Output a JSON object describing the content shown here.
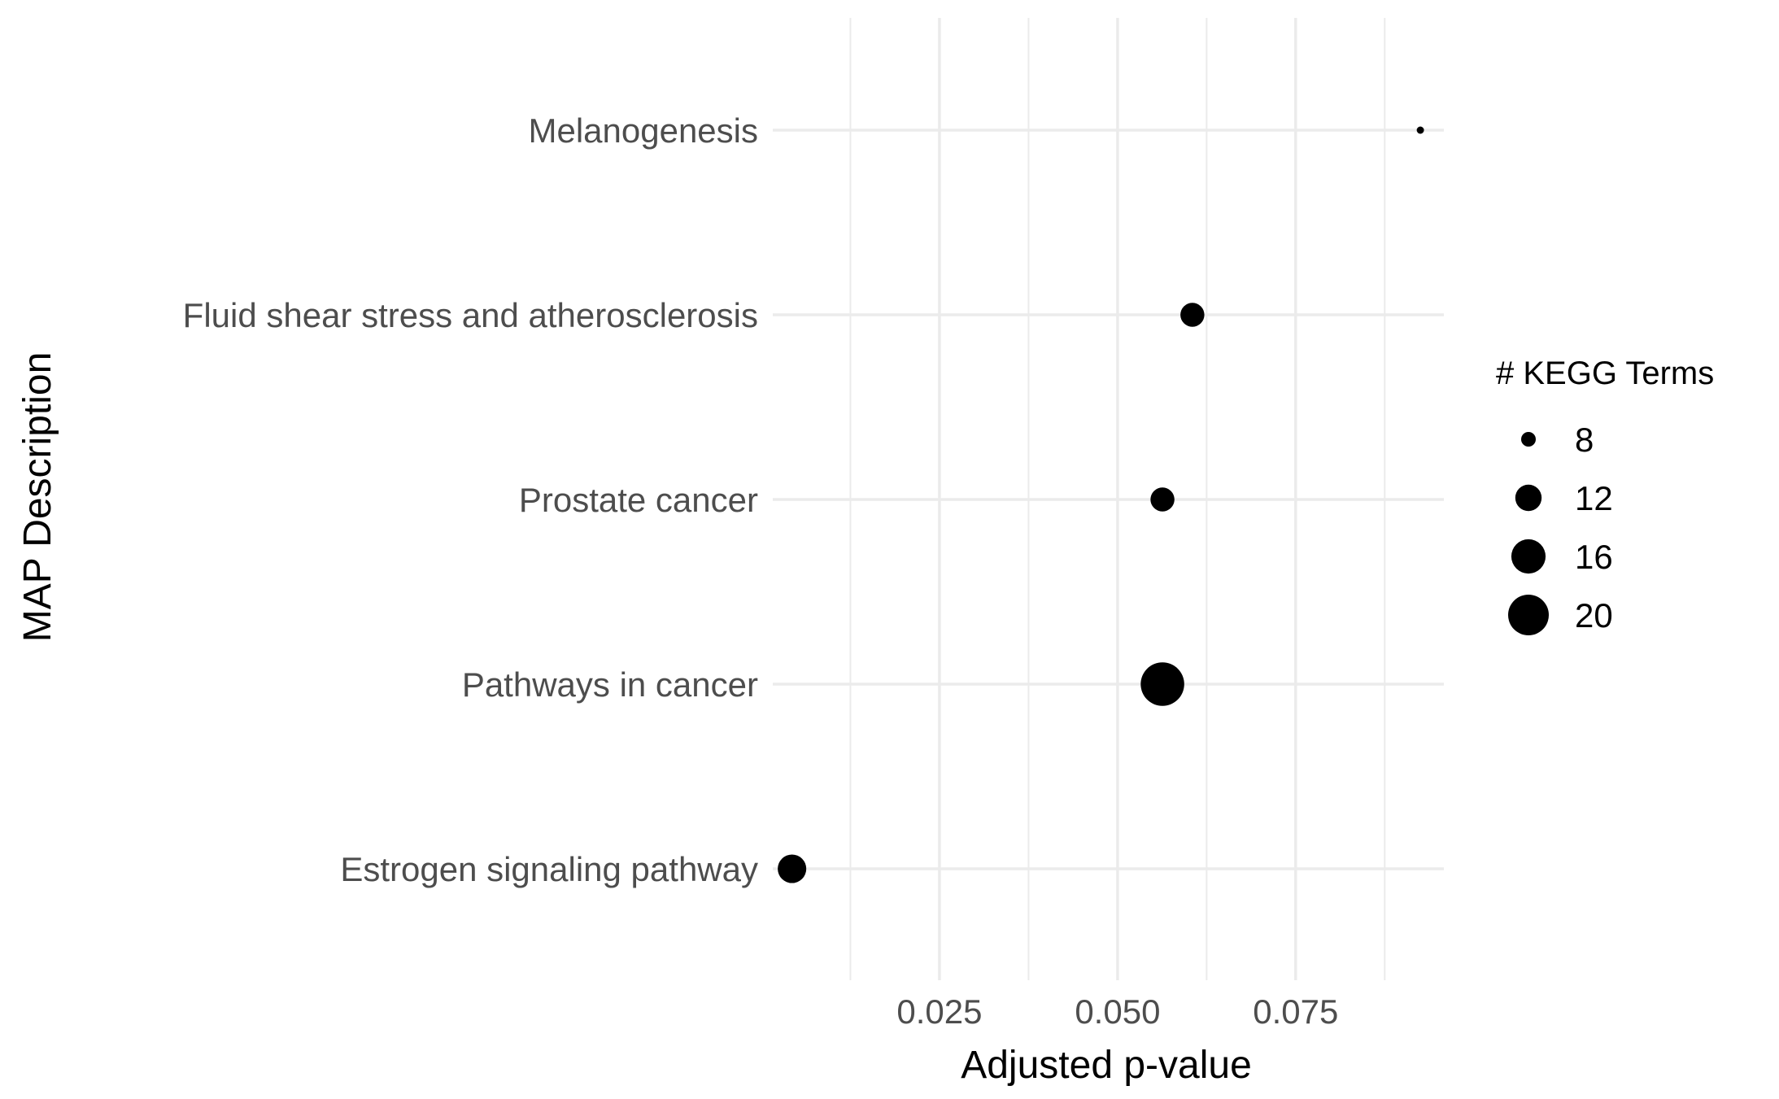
{
  "chart_data": {
    "type": "scatter",
    "title": "",
    "xlabel": "Adjusted p-value",
    "ylabel": "MAP Description",
    "xlim": [
      0.0016,
      0.0958
    ],
    "x_ticks": [
      0.025,
      0.05,
      0.075
    ],
    "x_tick_labels": [
      "0.025",
      "0.050",
      "0.075"
    ],
    "x_minor_gridlines": [
      0.0125,
      0.0375,
      0.0625,
      0.0875
    ],
    "categories": [
      "Estrogen signaling pathway",
      "Pathways in cancer",
      "Prostate cancer",
      "Fluid shear stress and atherosclerosis",
      "Melanogenesis"
    ],
    "points": [
      {
        "category": "Melanogenesis",
        "x": 0.0925,
        "size": 6
      },
      {
        "category": "Fluid shear stress and atherosclerosis",
        "x": 0.0605,
        "size": 11
      },
      {
        "category": "Prostate cancer",
        "x": 0.0563,
        "size": 11
      },
      {
        "category": "Pathways in cancer",
        "x": 0.0563,
        "size": 22
      },
      {
        "category": "Estrogen signaling pathway",
        "x": 0.0043,
        "size": 13
      }
    ],
    "legend": {
      "title": "# KEGG Terms",
      "position": "right",
      "entries": [
        {
          "label": "8",
          "size": 8
        },
        {
          "label": "12",
          "size": 12
        },
        {
          "label": "16",
          "size": 16
        },
        {
          "label": "20",
          "size": 20
        }
      ]
    },
    "grid": true,
    "point_color": "#000000",
    "grid_color": "#ebebeb",
    "theme": "minimal"
  }
}
